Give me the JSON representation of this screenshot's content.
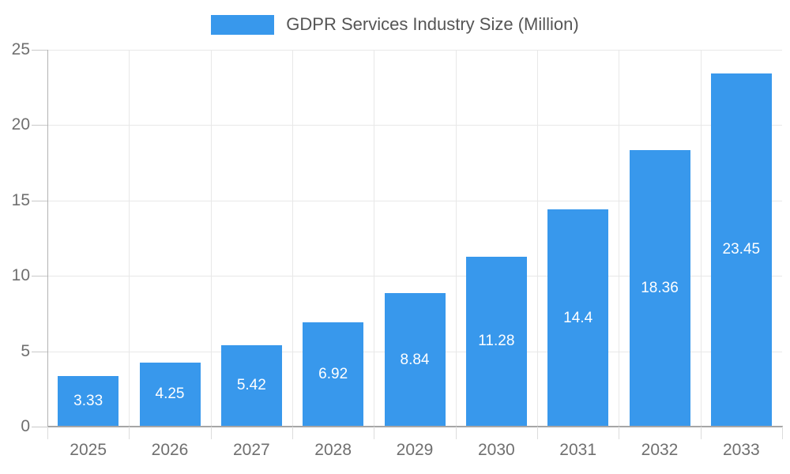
{
  "chart_data": {
    "type": "bar",
    "title": "GDPR Services Industry Size (Million)",
    "categories": [
      "2025",
      "2026",
      "2027",
      "2028",
      "2029",
      "2030",
      "2031",
      "2032",
      "2033"
    ],
    "values": [
      3.33,
      4.25,
      5.42,
      6.92,
      8.84,
      11.28,
      14.4,
      18.36,
      23.45
    ],
    "value_labels": [
      "3.33",
      "4.25",
      "5.42",
      "6.92",
      "8.84",
      "11.28",
      "14.4",
      "18.36",
      "23.45"
    ],
    "xlabel": "",
    "ylabel": "",
    "ylim": [
      0,
      25
    ],
    "yticks": [
      0,
      5,
      10,
      15,
      20,
      25
    ],
    "grid": true,
    "legend_position": "top-center",
    "colors": {
      "bar": "#3898ec",
      "bar_label_text": "#ffffff",
      "tick_label_text": "#6f6f6f",
      "legend_text": "#555555",
      "gridline": "#e8e8e8",
      "y_axis_line": "#b3b3b3",
      "x_axis_line": "#a6a6a6",
      "background": "#ffffff"
    }
  }
}
